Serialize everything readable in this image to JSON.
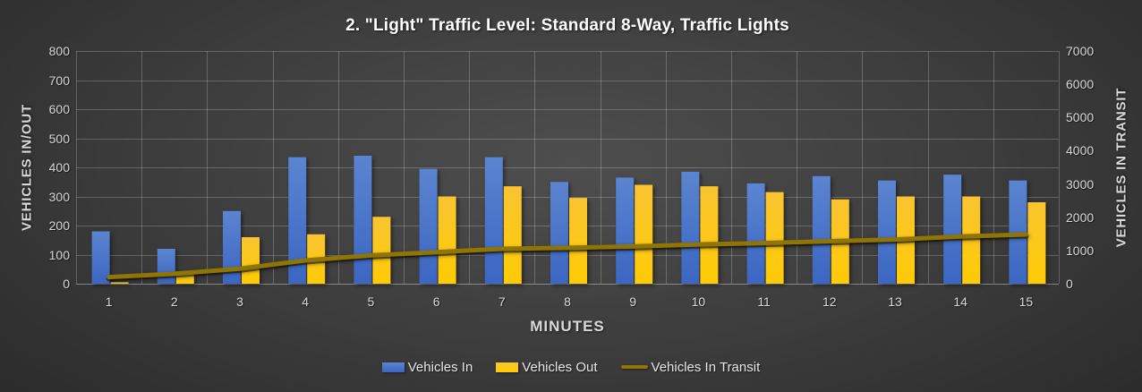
{
  "chart_data": {
    "type": "bar",
    "title": "2. \"Light\" Traffic Level: Standard 8-Way, Traffic Lights",
    "categories": [
      1,
      2,
      3,
      4,
      5,
      6,
      7,
      8,
      9,
      10,
      11,
      12,
      13,
      14,
      15
    ],
    "series": [
      {
        "name": "Vehicles In",
        "type": "bar",
        "axis": "left",
        "color": "#4472c4",
        "gradient_top": "#5b84d0",
        "gradient_bottom": "#3b66c2",
        "values": [
          180,
          120,
          250,
          435,
          440,
          395,
          435,
          350,
          365,
          385,
          345,
          370,
          355,
          375,
          355
        ]
      },
      {
        "name": "Vehicles Out",
        "type": "bar",
        "axis": "left",
        "color": "#ffc000",
        "gradient_top": "#f9c430",
        "gradient_bottom": "#ffcb05",
        "values": [
          5,
          40,
          160,
          170,
          230,
          300,
          335,
          295,
          340,
          335,
          315,
          290,
          300,
          300,
          280
        ]
      },
      {
        "name": "Vehicles In Transit",
        "type": "line",
        "axis": "right",
        "color": "#8e7505",
        "values": [
          200,
          300,
          450,
          700,
          850,
          950,
          1050,
          1080,
          1120,
          1180,
          1220,
          1280,
          1330,
          1420,
          1480
        ]
      }
    ],
    "xlabel": "MINUTES",
    "left_axis": {
      "title": "VEHICLES IN/OUT",
      "min": 0,
      "max": 800,
      "ticks": [
        800,
        700,
        600,
        500,
        400,
        300,
        200,
        100,
        0
      ]
    },
    "right_axis": {
      "title": "VEHICLES IN TRANSIT",
      "min": 0,
      "max": 7000,
      "ticks": [
        7000,
        6000,
        5000,
        4000,
        3000,
        2000,
        1000,
        0
      ]
    },
    "legend_position": "bottom",
    "grid": true,
    "background": {
      "center": "#4e4e4e",
      "edge": "#262626"
    }
  }
}
